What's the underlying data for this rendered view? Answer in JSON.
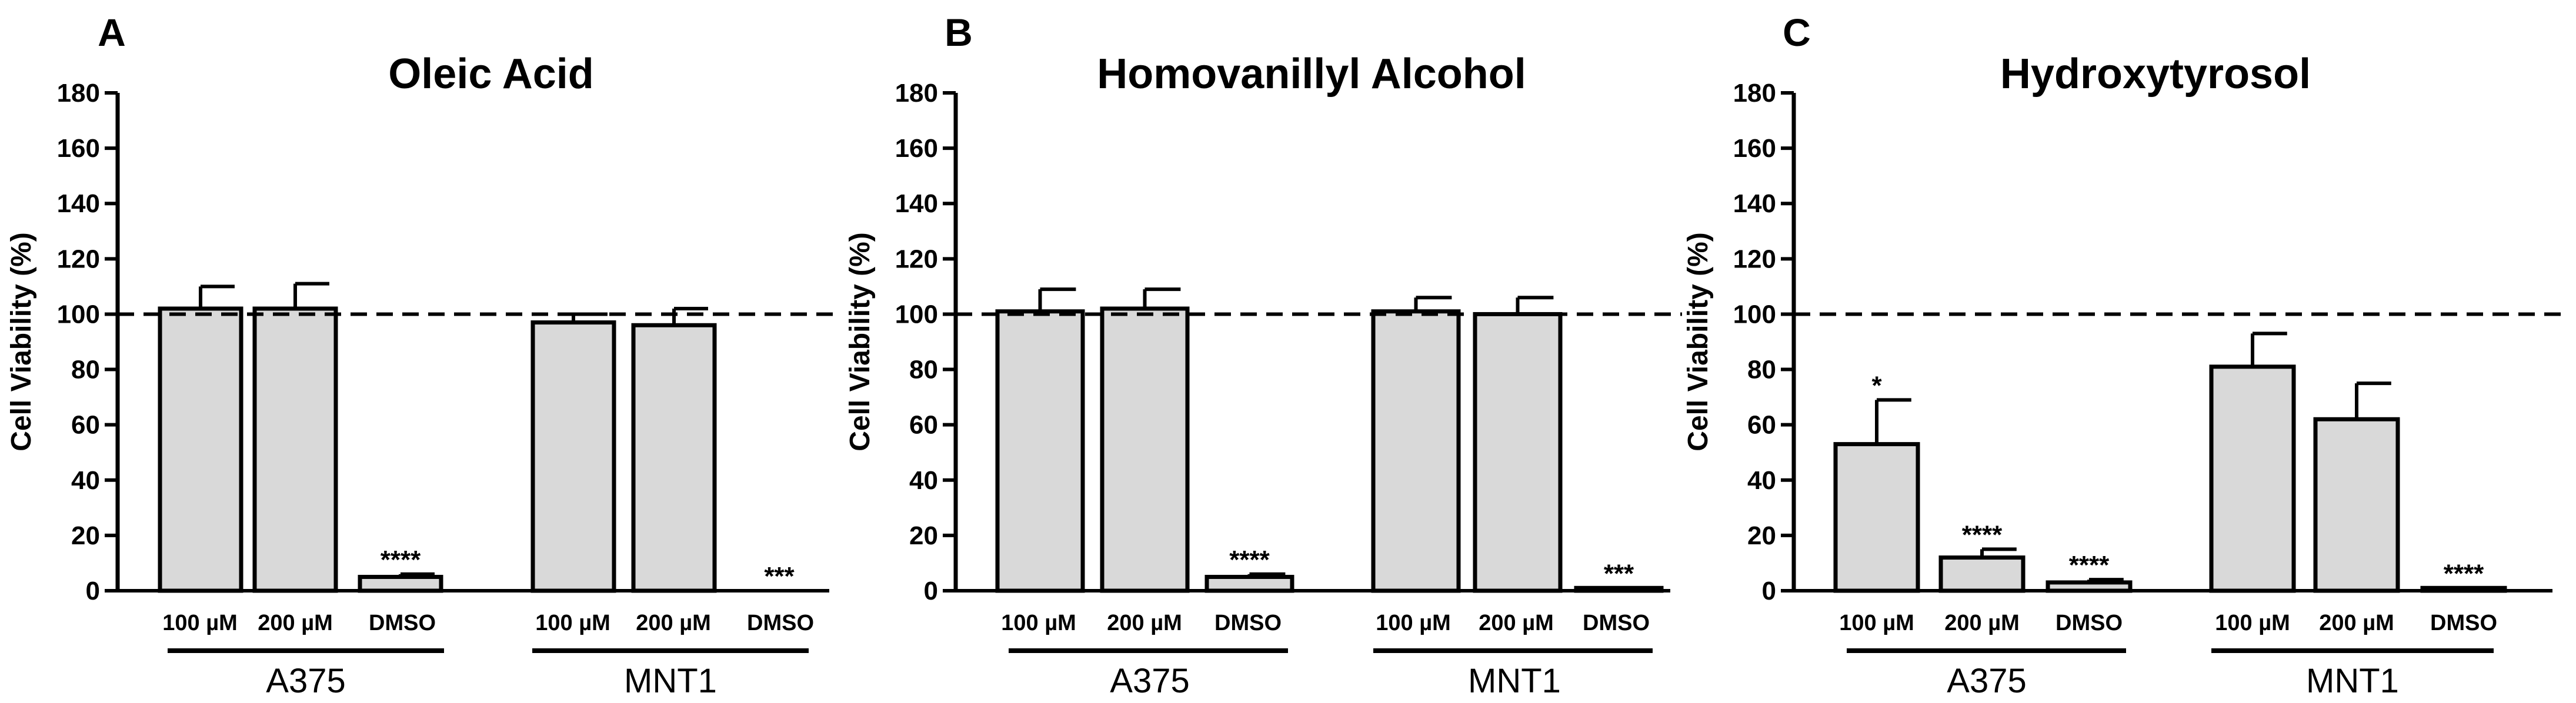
{
  "figure": {
    "background": "#ffffff",
    "bar_fill": "#d9d9d9",
    "ink": "#000000"
  },
  "chart_data": [
    {
      "panel": "A",
      "type": "bar",
      "title": "Oleic Acid",
      "ylabel": "Cell Viability (%)",
      "ylim": [
        0,
        180
      ],
      "yticks": [
        "0",
        "20",
        "40",
        "60",
        "80",
        "100",
        "120",
        "140",
        "160",
        "180"
      ],
      "reference_line": 100,
      "groups": [
        {
          "name": "A375",
          "bars": [
            {
              "label": "100 µM",
              "value": 102,
              "error": 8,
              "sig": ""
            },
            {
              "label": "200 µM",
              "value": 102,
              "error": 9,
              "sig": ""
            },
            {
              "label": "DMSO",
              "value": 5,
              "error": 1,
              "sig": "****"
            }
          ]
        },
        {
          "name": "MNT1",
          "bars": [
            {
              "label": "100 µM",
              "value": 97,
              "error": 3,
              "sig": ""
            },
            {
              "label": "200 µM",
              "value": 96,
              "error": 6,
              "sig": ""
            },
            {
              "label": "DMSO",
              "value": 0,
              "error": 0,
              "sig": "***"
            }
          ]
        }
      ]
    },
    {
      "panel": "B",
      "type": "bar",
      "title": "Homovanillyl Alcohol",
      "ylabel": "Cell Viability (%)",
      "ylim": [
        0,
        180
      ],
      "yticks": [
        "0",
        "20",
        "40",
        "60",
        "80",
        "100",
        "120",
        "140",
        "160",
        "180"
      ],
      "reference_line": 100,
      "groups": [
        {
          "name": "A375",
          "bars": [
            {
              "label": "100 µM",
              "value": 101,
              "error": 8,
              "sig": ""
            },
            {
              "label": "200 µM",
              "value": 102,
              "error": 7,
              "sig": ""
            },
            {
              "label": "DMSO",
              "value": 5,
              "error": 1,
              "sig": "****"
            }
          ]
        },
        {
          "name": "MNT1",
          "bars": [
            {
              "label": "100 µM",
              "value": 101,
              "error": 5,
              "sig": ""
            },
            {
              "label": "200 µM",
              "value": 100,
              "error": 6,
              "sig": ""
            },
            {
              "label": "DMSO",
              "value": 1,
              "error": 0,
              "sig": "***"
            }
          ]
        }
      ]
    },
    {
      "panel": "C",
      "type": "bar",
      "title": "Hydroxytyrosol",
      "ylabel": "Cell Viability (%)",
      "ylim": [
        0,
        180
      ],
      "yticks": [
        "0",
        "20",
        "40",
        "60",
        "80",
        "100",
        "120",
        "140",
        "160",
        "180"
      ],
      "reference_line": 100,
      "groups": [
        {
          "name": "A375",
          "bars": [
            {
              "label": "100 µM",
              "value": 53,
              "error": 16,
              "sig": "*"
            },
            {
              "label": "200 µM",
              "value": 12,
              "error": 3,
              "sig": "****"
            },
            {
              "label": "DMSO",
              "value": 3,
              "error": 1,
              "sig": "****"
            }
          ]
        },
        {
          "name": "MNT1",
          "bars": [
            {
              "label": "100 µM",
              "value": 81,
              "error": 12,
              "sig": ""
            },
            {
              "label": "200 µM",
              "value": 62,
              "error": 13,
              "sig": ""
            },
            {
              "label": "DMSO",
              "value": 1,
              "error": 0,
              "sig": "****"
            }
          ]
        }
      ]
    }
  ]
}
